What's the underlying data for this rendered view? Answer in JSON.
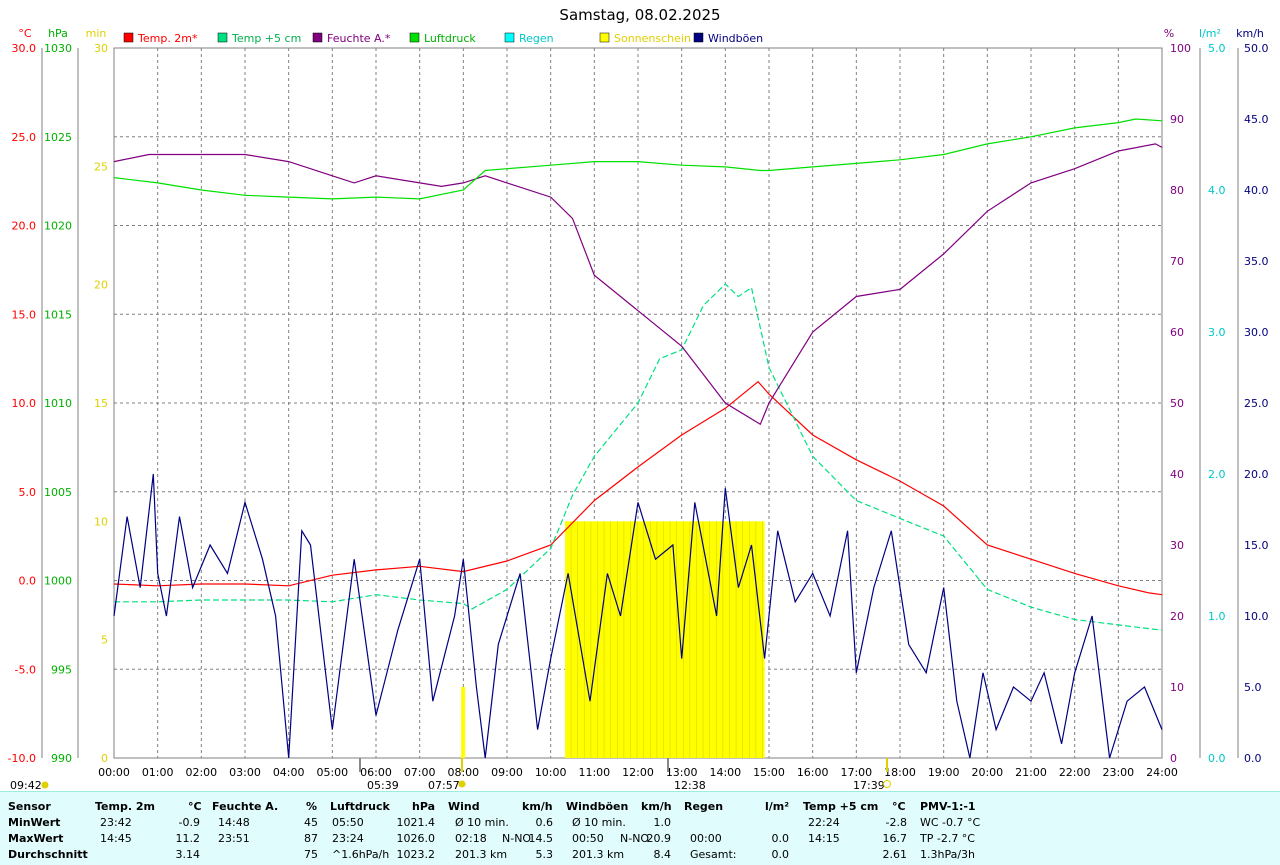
{
  "title": "Samstag, 08.02.2025",
  "units": {
    "temp": "°C",
    "pressure": "hPa",
    "sun": "min",
    "humidity": "%",
    "rain": "l/m²",
    "wind": "km/h"
  },
  "legend": [
    {
      "label": "Temp. 2m*",
      "color": "#ff0000",
      "text_color": "#ff0000"
    },
    {
      "label": "Temp +5 cm",
      "color": "#00e080",
      "text_color": "#00b050"
    },
    {
      "label": "Feuchte A.*",
      "color": "#800080",
      "text_color": "#800080"
    },
    {
      "label": "Luftdruck",
      "color": "#00e000",
      "text_color": "#00b000"
    },
    {
      "label": "Regen",
      "color": "#00ffff",
      "text_color": "#00c8c8"
    },
    {
      "label": "Sonnenschein",
      "color": "#ffff00",
      "text_color": "#e0d000"
    },
    {
      "label": "Windböen",
      "color": "#000080",
      "text_color": "#000080"
    }
  ],
  "sun_events": {
    "sunrise_time": "07:57",
    "sunset_time": "17:39",
    "moonrise_time": "05:39",
    "moonset_time": "12:38",
    "left_time": "09:42"
  },
  "chart_data": {
    "type": "line",
    "x_label_unit": "hour",
    "x_ticks": [
      "00:00",
      "01:00",
      "02:00",
      "03:00",
      "04:00",
      "05:00",
      "06:00",
      "07:00",
      "08:00",
      "09:00",
      "10:00",
      "11:00",
      "12:00",
      "13:00",
      "14:00",
      "15:00",
      "16:00",
      "17:00",
      "18:00",
      "19:00",
      "20:00",
      "21:00",
      "22:00",
      "23:00",
      "24:00"
    ],
    "axes": {
      "temp": {
        "ylim": [
          -10,
          30
        ],
        "ticks": [
          "30.0",
          "25.0",
          "20.0",
          "15.0",
          "10.0",
          "5.0",
          "0.0",
          "-5.0",
          "-10.0"
        ],
        "color": "#ff0000"
      },
      "pressure": {
        "ylim": [
          990,
          1030
        ],
        "ticks": [
          "1030",
          "1025",
          "1020",
          "1015",
          "1010",
          "1005",
          "1000",
          "995",
          "990"
        ],
        "color": "#00b000"
      },
      "sun": {
        "ylim": [
          0,
          30
        ],
        "ticks": [
          "30",
          "25",
          "20",
          "15",
          "10",
          "5",
          "0"
        ],
        "color": "#e0d000"
      },
      "humidity": {
        "ylim": [
          0,
          100
        ],
        "ticks": [
          "100",
          "90",
          "80",
          "70",
          "60",
          "50",
          "40",
          "30",
          "20",
          "10",
          "0"
        ],
        "color": "#800080"
      },
      "rain": {
        "ylim": [
          0,
          5
        ],
        "ticks": [
          "5.0",
          "4.0",
          "3.0",
          "2.0",
          "1.0",
          "0.0"
        ],
        "color": "#00c8c8"
      },
      "wind": {
        "ylim": [
          0,
          50
        ],
        "ticks": [
          "50.0",
          "45.0",
          "40.0",
          "35.0",
          "30.0",
          "25.0",
          "20.0",
          "15.0",
          "10.0",
          "5.0",
          "0.0"
        ],
        "color": "#000080"
      }
    },
    "series": [
      {
        "name": "Temp. 2m*",
        "axis": "temp",
        "color": "#ff0000",
        "x": [
          0,
          1,
          2,
          3,
          4,
          5,
          6,
          7,
          8,
          9,
          10,
          11,
          12,
          13,
          14,
          14.75,
          15,
          16,
          17,
          18,
          19,
          20,
          21,
          22,
          23,
          23.7,
          24
        ],
        "y": [
          -0.2,
          -0.3,
          -0.2,
          -0.2,
          -0.3,
          0.3,
          0.6,
          0.8,
          0.5,
          1.1,
          2.0,
          4.5,
          6.4,
          8.2,
          9.7,
          11.2,
          10.5,
          8.2,
          6.8,
          5.6,
          4.2,
          2.0,
          1.2,
          0.4,
          -0.3,
          -0.7,
          -0.8
        ]
      },
      {
        "name": "Temp +5 cm",
        "axis": "temp",
        "color": "#00e080",
        "dashed": true,
        "x": [
          0,
          1,
          2,
          3,
          4,
          5,
          6,
          7,
          8,
          8.2,
          9,
          10,
          10.5,
          11,
          12,
          12.5,
          13,
          13.5,
          14,
          14.3,
          14.6,
          15,
          16,
          17,
          18,
          19,
          20,
          21,
          22,
          23,
          24
        ],
        "y": [
          -1.2,
          -1.2,
          -1.1,
          -1.1,
          -1.1,
          -1.2,
          -0.8,
          -1.1,
          -1.3,
          -1.6,
          -0.5,
          1.8,
          4.8,
          7.0,
          10.0,
          12.5,
          13.0,
          15.5,
          16.7,
          16.0,
          16.5,
          12.0,
          7.0,
          4.5,
          3.5,
          2.5,
          -0.5,
          -1.5,
          -2.2,
          -2.5,
          -2.8
        ]
      },
      {
        "name": "Feuchte A.*",
        "axis": "humidity",
        "color": "#800080",
        "x": [
          0,
          0.8,
          1,
          2,
          3,
          4,
          5,
          5.5,
          6,
          7,
          7.5,
          8,
          8.5,
          9,
          10,
          10.5,
          11,
          12,
          13,
          14,
          14.8,
          15,
          16,
          17,
          18,
          19,
          20,
          21,
          22,
          23,
          23.85,
          24
        ],
        "y": [
          84,
          85,
          85,
          85,
          85,
          84,
          82,
          81,
          82,
          81,
          80.5,
          81,
          82,
          81,
          79,
          76,
          68,
          63,
          58,
          50,
          47,
          50,
          60,
          65,
          66,
          71,
          77,
          81,
          83,
          85.5,
          86.5,
          86
        ]
      },
      {
        "name": "Luftdruck",
        "axis": "pressure",
        "color": "#00e000",
        "x": [
          0,
          1,
          2,
          3,
          4,
          5,
          6,
          7,
          8,
          8.5,
          9,
          10,
          11,
          12,
          13,
          14,
          14.8,
          15,
          16,
          17,
          18,
          19,
          20,
          21,
          22,
          23,
          23.4,
          24
        ],
        "y": [
          1022.7,
          1022.4,
          1022.0,
          1021.7,
          1021.6,
          1021.5,
          1021.6,
          1021.5,
          1022.0,
          1023.1,
          1023.2,
          1023.4,
          1023.6,
          1023.6,
          1023.4,
          1023.3,
          1023.1,
          1023.1,
          1023.3,
          1023.5,
          1023.7,
          1024.0,
          1024.6,
          1025.0,
          1025.5,
          1025.8,
          1026.0,
          1025.9
        ]
      },
      {
        "name": "Windböen",
        "axis": "wind",
        "color": "#000080",
        "x": [
          0,
          0.3,
          0.6,
          0.9,
          1.0,
          1.2,
          1.5,
          1.8,
          2.2,
          2.6,
          3.0,
          3.4,
          3.7,
          4.0,
          4.3,
          4.5,
          5.0,
          5.5,
          6.0,
          6.5,
          7.0,
          7.3,
          7.8,
          8.0,
          8.3,
          8.5,
          8.8,
          9.3,
          9.7,
          10.0,
          10.4,
          10.9,
          11.3,
          11.6,
          12.0,
          12.4,
          12.8,
          13.0,
          13.3,
          13.8,
          14.0,
          14.3,
          14.6,
          14.9,
          15.2,
          15.6,
          16.0,
          16.4,
          16.8,
          17.0,
          17.4,
          17.8,
          18.2,
          18.6,
          19.0,
          19.3,
          19.6,
          19.9,
          20.2,
          20.6,
          21.0,
          21.3,
          21.7,
          22.0,
          22.4,
          22.8,
          23.2,
          23.6,
          24.0
        ],
        "y": [
          10.0,
          17.0,
          12.0,
          20.0,
          13.0,
          10.0,
          17.0,
          12.0,
          15.0,
          13.0,
          18.0,
          14.0,
          10.0,
          0.0,
          16.0,
          15.0,
          2.0,
          14.0,
          3.0,
          9.0,
          14.0,
          4.0,
          10.0,
          14.0,
          5.0,
          0.0,
          8.0,
          13.0,
          2.0,
          7.0,
          13.0,
          4.0,
          13.0,
          10.0,
          18.0,
          14.0,
          15.0,
          7.0,
          18.0,
          10.0,
          19.0,
          12.0,
          15.0,
          7.0,
          16.0,
          11.0,
          13.0,
          10.0,
          16.0,
          6.0,
          12.0,
          16.0,
          8.0,
          6.0,
          12.0,
          4.0,
          0.0,
          6.0,
          2.0,
          5.0,
          4.0,
          6.0,
          1.0,
          6.0,
          10.0,
          0.0,
          4.0,
          5.0,
          2.0
        ]
      }
    ],
    "sunshine_bars": {
      "name": "Sonnenschein",
      "axis": "sun",
      "x_start": 10.33,
      "x_end": 14.9,
      "value": 10
    }
  },
  "summary": {
    "headers": {
      "sensor": "Sensor",
      "temp2m": "Temp. 2m",
      "temp_unit": "°C",
      "feuchte": "Feuchte A.",
      "feuchte_unit": "%",
      "luftdruck": "Luftdruck",
      "luftdruck_unit": "hPa",
      "wind": "Wind",
      "wind_unit": "km/h",
      "windboeen": "Windböen",
      "windboeen_unit": "km/h",
      "regen": "Regen",
      "regen_unit": "l/m²",
      "temp5": "Temp +5 cm",
      "temp5_unit": "°C",
      "pmv": "PMV-1:-1"
    },
    "rows": [
      {
        "label": "MinWert",
        "t_time": "23:42",
        "t_val": "-0.9",
        "f_time": "14:48",
        "f_val": "45",
        "l_time": "05:50",
        "l_val": "1021.4",
        "w_a": "Ø 10 min.",
        "w_b": "",
        "w_val": "0.6",
        "g_a": "Ø 10 min.",
        "g_b": "",
        "g_val": "1.0",
        "r_a": "",
        "r_val": "",
        "t5_time": "22:24",
        "t5_val": "-2.8",
        "pmv": "WC -0.7 °C"
      },
      {
        "label": "MaxWert",
        "t_time": "14:45",
        "t_val": "11.2",
        "f_time": "23:51",
        "f_val": "87",
        "l_time": "23:24",
        "l_val": "1026.0",
        "w_a": "02:18",
        "w_b": "N-NO",
        "w_val": "14.5",
        "g_a": "00:50",
        "g_b": "N-NO",
        "g_val": "20.9",
        "r_a": "00:00",
        "r_val": "0.0",
        "t5_time": "14:15",
        "t5_val": "16.7",
        "pmv": "TP -2.7 °C"
      },
      {
        "label": "Durchschnitt",
        "t_time": "",
        "t_val": "3.14",
        "f_time": "",
        "f_val": "75",
        "l_time": "^1.6hPa/h",
        "l_val": "1023.2",
        "w_a": "201.3 km",
        "w_b": "",
        "w_val": "5.3",
        "g_a": "201.3 km",
        "g_b": "",
        "g_val": "8.4",
        "r_a": "Gesamt:",
        "r_val": "0.0",
        "t5_time": "",
        "t5_val": "2.61",
        "pmv": "1.3hPa/3h"
      }
    ]
  }
}
